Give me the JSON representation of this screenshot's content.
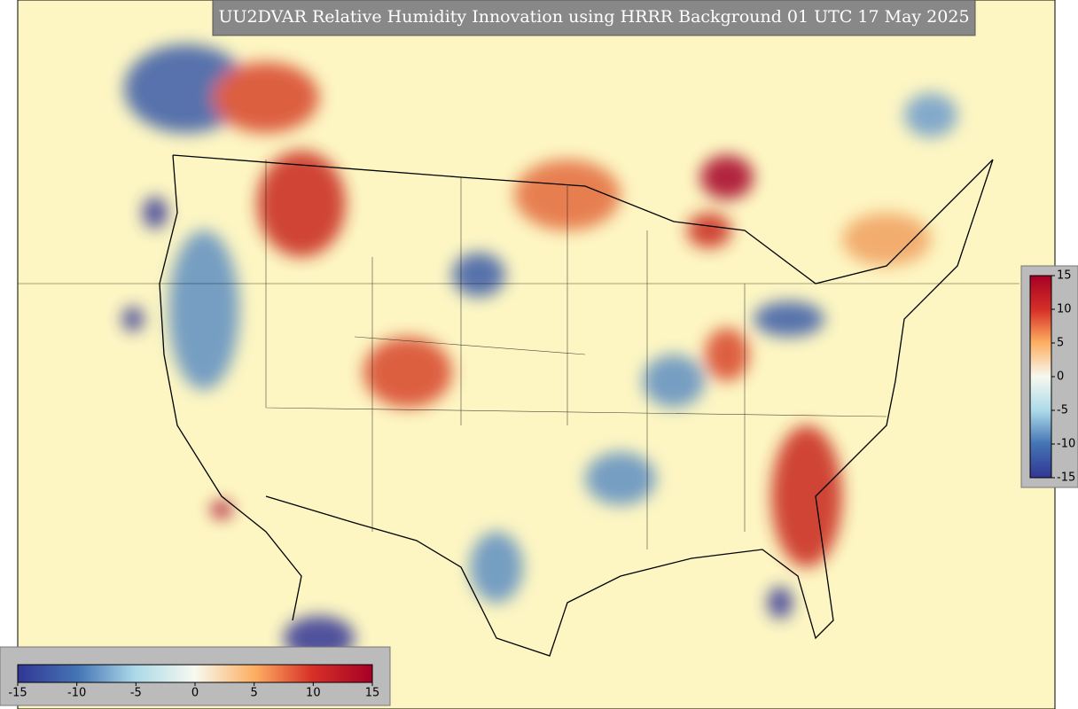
{
  "title": "UU2DVAR Relative Humidity Innovation using HRRR Background 01 UTC 17 May 2025",
  "colorbar": {
    "range": [
      -15,
      15
    ],
    "ticks": [
      -15,
      -10,
      -5,
      0,
      5,
      10,
      15
    ]
  }
}
